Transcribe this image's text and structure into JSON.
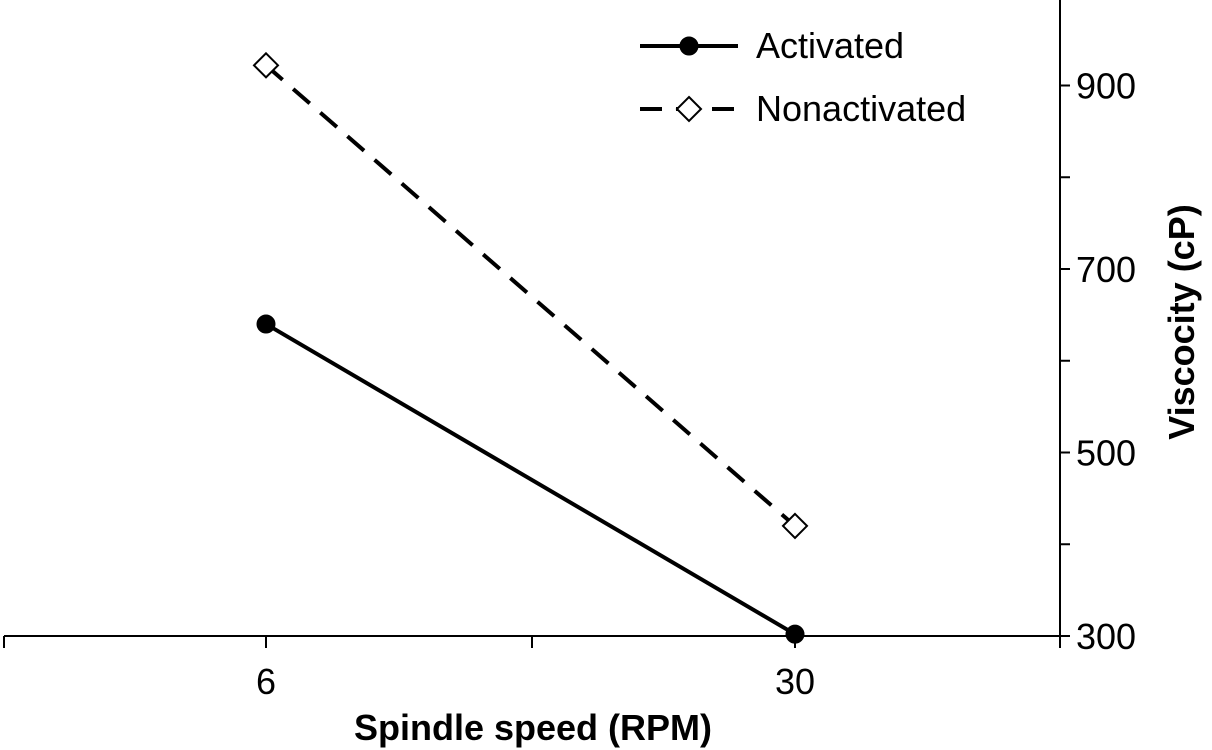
{
  "chart_data": {
    "type": "line",
    "xlabel": "Spindle speed (RPM)",
    "ylabel": "Viscocity (cP)",
    "categories": [
      "6",
      "30"
    ],
    "yticks": [
      300,
      500,
      700,
      900
    ],
    "ylim": [
      300,
      1000
    ],
    "y_axis_side": "right",
    "legend_position": "top-right",
    "grid": false,
    "series": [
      {
        "name": "Activated",
        "values": [
          640,
          302
        ],
        "line_style": "solid",
        "marker": "filled-circle",
        "color": "#000000"
      },
      {
        "name": "Nonactivated",
        "values": [
          922,
          420
        ],
        "line_style": "dashed",
        "marker": "open-diamond",
        "color": "#000000"
      }
    ]
  }
}
